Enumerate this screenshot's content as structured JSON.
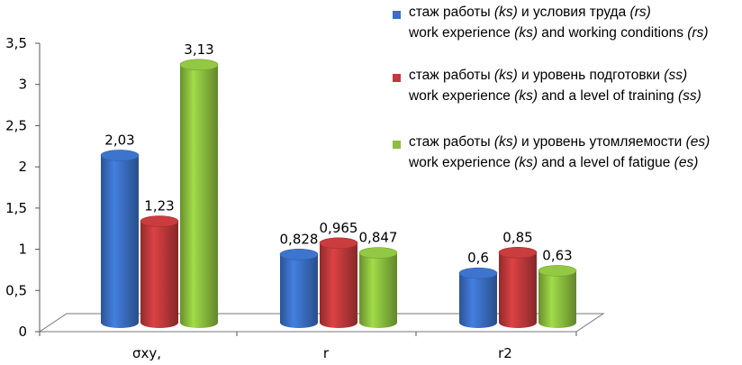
{
  "chart_data": {
    "type": "bar",
    "style": "3d-cylinder",
    "categories": [
      "σxy,",
      "r",
      "r2"
    ],
    "ylim": [
      0,
      3.5
    ],
    "yticks": [
      "0",
      "0,5",
      "1",
      "1,5",
      "2",
      "2,5",
      "3",
      "3,5"
    ],
    "ytick_values": [
      0,
      0.5,
      1,
      1.5,
      2,
      2.5,
      3,
      3.5
    ],
    "grid": false,
    "legend_position": "top-right",
    "series": [
      {
        "name": "стаж работы (ks) и условия труда (rs) / work experience (ks) and working conditions (rs)",
        "color": "#3a6fc4",
        "values": [
          2.03,
          0.828,
          0.6
        ],
        "labels": [
          "2,03",
          "0,828",
          "0,6"
        ]
      },
      {
        "name": "стаж работы (ks) и уровень подготовки (ss) / work experience (ks) and a level of training (ss)",
        "color": "#c0393b",
        "values": [
          1.23,
          0.965,
          0.85
        ],
        "labels": [
          "1,23",
          "0,965",
          "0,85"
        ]
      },
      {
        "name": "стаж работы (ks) и уровень утомляемости (es) / work experience (ks) and a level of fatigue (es)",
        "color": "#8cbf3f",
        "values": [
          3.13,
          0.847,
          0.63
        ],
        "labels": [
          "3,13",
          "0,847",
          "0,63"
        ]
      }
    ]
  },
  "legend": [
    {
      "color": "#3a6fc4",
      "ru": [
        "стаж  работы ",
        "(ks)",
        " и условия труда ",
        "(rs)"
      ],
      "en": [
        "work experience ",
        "(ks)",
        " and working conditions ",
        "(rs)"
      ]
    },
    {
      "color": "#c0393b",
      "ru": [
        "стаж работы ",
        "(ks)",
        " и уровень подготовки ",
        "(ss)"
      ],
      "en": [
        "work experience ",
        "(ks)",
        " and a level of training ",
        "(ss)"
      ]
    },
    {
      "color": "#8cbf3f",
      "ru": [
        "стаж работы ",
        "(ks)",
        " и уровень утомляемости ",
        "(es)"
      ],
      "en": [
        "work experience ",
        "(ks)",
        " and a level of fatigue ",
        "(es)"
      ]
    }
  ]
}
